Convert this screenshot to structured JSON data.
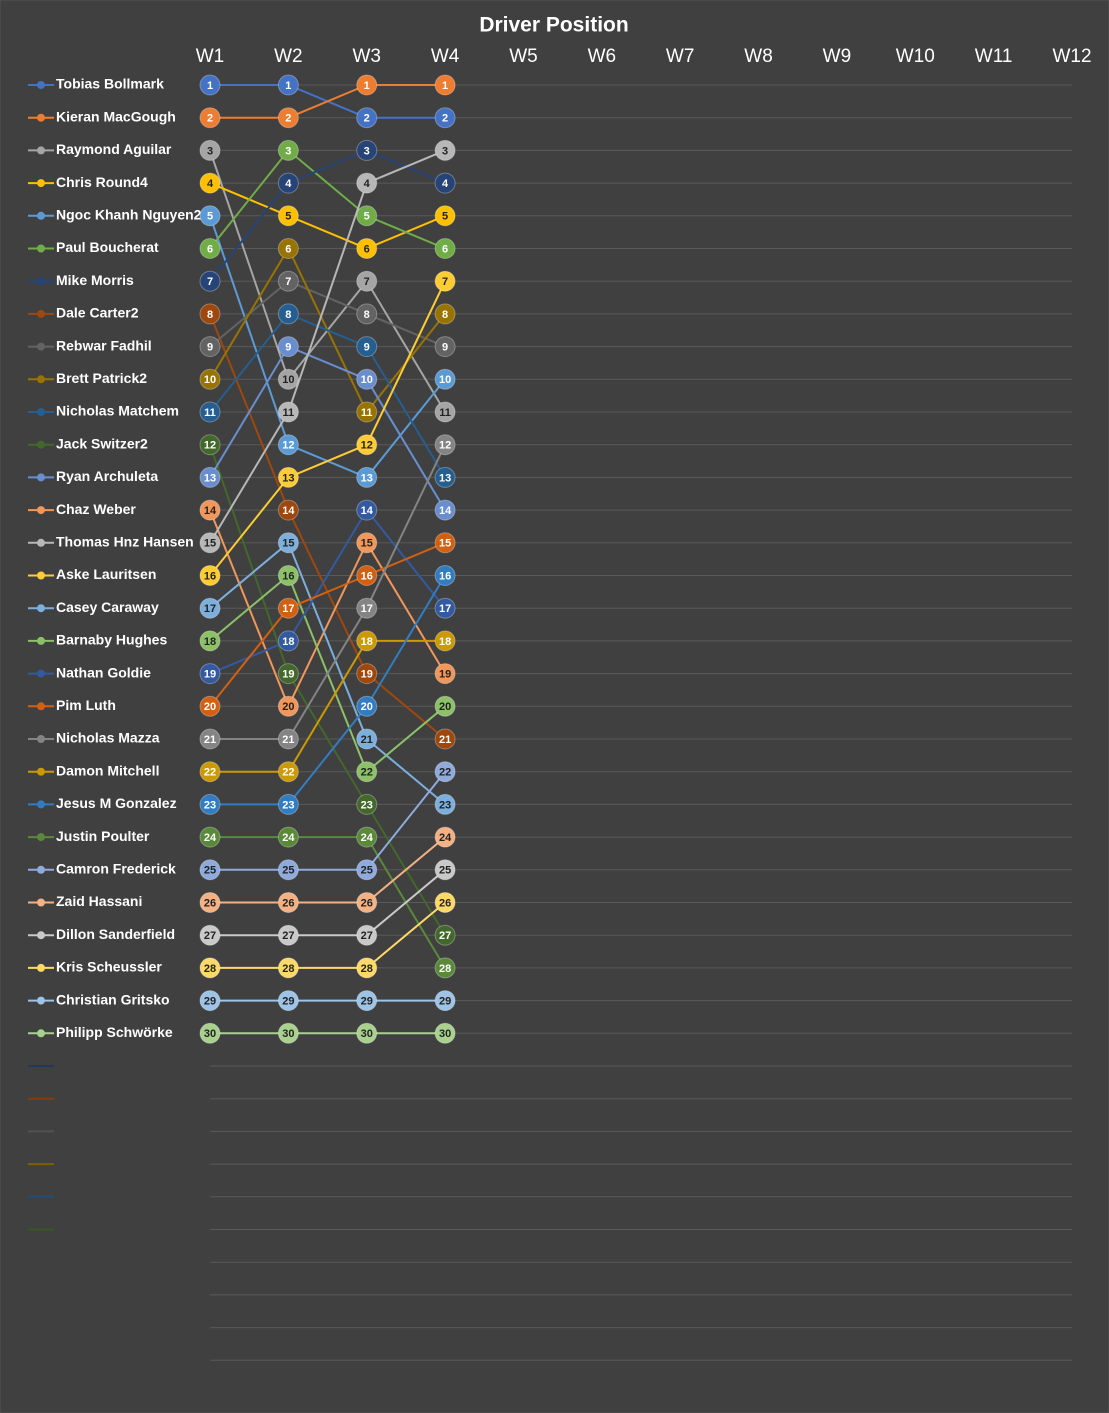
{
  "chart_data": {
    "type": "bump",
    "title": "Driver Position",
    "categories": [
      "W1",
      "W2",
      "W3",
      "W4",
      "W5",
      "W6",
      "W7",
      "W8",
      "W9",
      "W10",
      "W11",
      "W12"
    ],
    "ylim": [
      1,
      40
    ],
    "y_reversed": true,
    "grid": true,
    "series": [
      {
        "name": "Tobias Bollmark",
        "color": "#4472c4",
        "values": [
          1,
          1,
          2,
          2,
          null,
          null,
          null,
          null,
          null,
          null,
          null,
          null
        ]
      },
      {
        "name": "Kieran MacGough",
        "color": "#ed7d31",
        "values": [
          2,
          2,
          1,
          1,
          null,
          null,
          null,
          null,
          null,
          null,
          null,
          null
        ]
      },
      {
        "name": "Raymond Aguilar",
        "color": "#a5a5a5",
        "values": [
          3,
          10,
          7,
          11,
          null,
          null,
          null,
          null,
          null,
          null,
          null,
          null
        ]
      },
      {
        "name": "Chris Round4",
        "color": "#ffc000",
        "values": [
          4,
          5,
          6,
          5,
          null,
          null,
          null,
          null,
          null,
          null,
          null,
          null
        ]
      },
      {
        "name": "Ngoc Khanh Nguyen2",
        "color": "#5b9bd5",
        "values": [
          5,
          12,
          13,
          10,
          null,
          null,
          null,
          null,
          null,
          null,
          null,
          null
        ]
      },
      {
        "name": "Paul Boucherat",
        "color": "#70ad47",
        "values": [
          6,
          3,
          5,
          6,
          null,
          null,
          null,
          null,
          null,
          null,
          null,
          null
        ]
      },
      {
        "name": "Mike Morris",
        "color": "#264478",
        "values": [
          7,
          4,
          3,
          4,
          null,
          null,
          null,
          null,
          null,
          null,
          null,
          null
        ]
      },
      {
        "name": "Dale Carter2",
        "color": "#9e480e",
        "values": [
          8,
          14,
          19,
          21,
          null,
          null,
          null,
          null,
          null,
          null,
          null,
          null
        ]
      },
      {
        "name": "Rebwar Fadhil",
        "color": "#636363",
        "values": [
          9,
          7,
          8,
          9,
          null,
          null,
          null,
          null,
          null,
          null,
          null,
          null
        ]
      },
      {
        "name": "Brett Patrick2",
        "color": "#997300",
        "values": [
          10,
          6,
          11,
          8,
          null,
          null,
          null,
          null,
          null,
          null,
          null,
          null
        ]
      },
      {
        "name": "Nicholas Matchem",
        "color": "#255e91",
        "values": [
          11,
          8,
          9,
          13,
          null,
          null,
          null,
          null,
          null,
          null,
          null,
          null
        ]
      },
      {
        "name": "Jack Switzer2",
        "color": "#43682b",
        "values": [
          12,
          19,
          23,
          27,
          null,
          null,
          null,
          null,
          null,
          null,
          null,
          null
        ]
      },
      {
        "name": "Ryan Archuleta",
        "color": "#698ed0",
        "values": [
          13,
          9,
          10,
          14,
          null,
          null,
          null,
          null,
          null,
          null,
          null,
          null
        ]
      },
      {
        "name": "Chaz Weber",
        "color": "#f1975a",
        "values": [
          14,
          20,
          15,
          19,
          null,
          null,
          null,
          null,
          null,
          null,
          null,
          null
        ]
      },
      {
        "name": "Thomas Hnz Hansen",
        "color": "#b7b7b7",
        "values": [
          15,
          11,
          4,
          3,
          null,
          null,
          null,
          null,
          null,
          null,
          null,
          null
        ]
      },
      {
        "name": "Aske Lauritsen",
        "color": "#ffcd33",
        "values": [
          16,
          13,
          12,
          7,
          null,
          null,
          null,
          null,
          null,
          null,
          null,
          null
        ]
      },
      {
        "name": "Casey Caraway",
        "color": "#7cafdd",
        "values": [
          17,
          15,
          21,
          23,
          null,
          null,
          null,
          null,
          null,
          null,
          null,
          null
        ]
      },
      {
        "name": "Barnaby Hughes",
        "color": "#8cc168",
        "values": [
          18,
          16,
          22,
          20,
          null,
          null,
          null,
          null,
          null,
          null,
          null,
          null
        ]
      },
      {
        "name": "Nathan Goldie",
        "color": "#335aa1",
        "values": [
          19,
          18,
          14,
          17,
          null,
          null,
          null,
          null,
          null,
          null,
          null,
          null
        ]
      },
      {
        "name": "Pim Luth",
        "color": "#d26012",
        "values": [
          20,
          17,
          16,
          15,
          null,
          null,
          null,
          null,
          null,
          null,
          null,
          null
        ]
      },
      {
        "name": "Nicholas Mazza",
        "color": "#848484",
        "values": [
          21,
          21,
          17,
          12,
          null,
          null,
          null,
          null,
          null,
          null,
          null,
          null
        ]
      },
      {
        "name": "Damon Mitchell",
        "color": "#cc9a00",
        "values": [
          22,
          22,
          18,
          18,
          null,
          null,
          null,
          null,
          null,
          null,
          null,
          null
        ]
      },
      {
        "name": "Jesus M Gonzalez",
        "color": "#327dc2",
        "values": [
          23,
          23,
          20,
          16,
          null,
          null,
          null,
          null,
          null,
          null,
          null,
          null
        ]
      },
      {
        "name": "Justin Poulter",
        "color": "#5a8a39",
        "values": [
          24,
          24,
          24,
          28,
          null,
          null,
          null,
          null,
          null,
          null,
          null,
          null
        ]
      },
      {
        "name": "Camron Frederick",
        "color": "#8faadc",
        "values": [
          25,
          25,
          25,
          22,
          null,
          null,
          null,
          null,
          null,
          null,
          null,
          null
        ]
      },
      {
        "name": "Zaid Hassani",
        "color": "#f4b183",
        "values": [
          26,
          26,
          26,
          24,
          null,
          null,
          null,
          null,
          null,
          null,
          null,
          null
        ]
      },
      {
        "name": "Dillon Sanderfield",
        "color": "#c9c9c9",
        "values": [
          27,
          27,
          27,
          25,
          null,
          null,
          null,
          null,
          null,
          null,
          null,
          null
        ]
      },
      {
        "name": "Kris Scheussler",
        "color": "#ffd966",
        "values": [
          28,
          28,
          28,
          26,
          null,
          null,
          null,
          null,
          null,
          null,
          null,
          null
        ]
      },
      {
        "name": "Christian Gritsko",
        "color": "#9dc3e6",
        "values": [
          29,
          29,
          29,
          29,
          null,
          null,
          null,
          null,
          null,
          null,
          null,
          null
        ]
      },
      {
        "name": "Philipp Schwörke",
        "color": "#a9d18e",
        "values": [
          30,
          30,
          30,
          30,
          null,
          null,
          null,
          null,
          null,
          null,
          null,
          null
        ]
      },
      {
        "name": null,
        "color": "#203864",
        "values": [
          null,
          null,
          null,
          null,
          null,
          null,
          null,
          null,
          null,
          null,
          null,
          null
        ]
      },
      {
        "name": null,
        "color": "#843c0c",
        "values": [
          null,
          null,
          null,
          null,
          null,
          null,
          null,
          null,
          null,
          null,
          null,
          null
        ]
      },
      {
        "name": null,
        "color": "#525252",
        "values": [
          null,
          null,
          null,
          null,
          null,
          null,
          null,
          null,
          null,
          null,
          null,
          null
        ]
      },
      {
        "name": null,
        "color": "#7f6000",
        "values": [
          null,
          null,
          null,
          null,
          null,
          null,
          null,
          null,
          null,
          null,
          null,
          null
        ]
      },
      {
        "name": null,
        "color": "#1f4e79",
        "values": [
          null,
          null,
          null,
          null,
          null,
          null,
          null,
          null,
          null,
          null,
          null,
          null
        ]
      },
      {
        "name": null,
        "color": "#375623",
        "values": [
          null,
          null,
          null,
          null,
          null,
          null,
          null,
          null,
          null,
          null,
          null,
          null
        ]
      }
    ]
  }
}
